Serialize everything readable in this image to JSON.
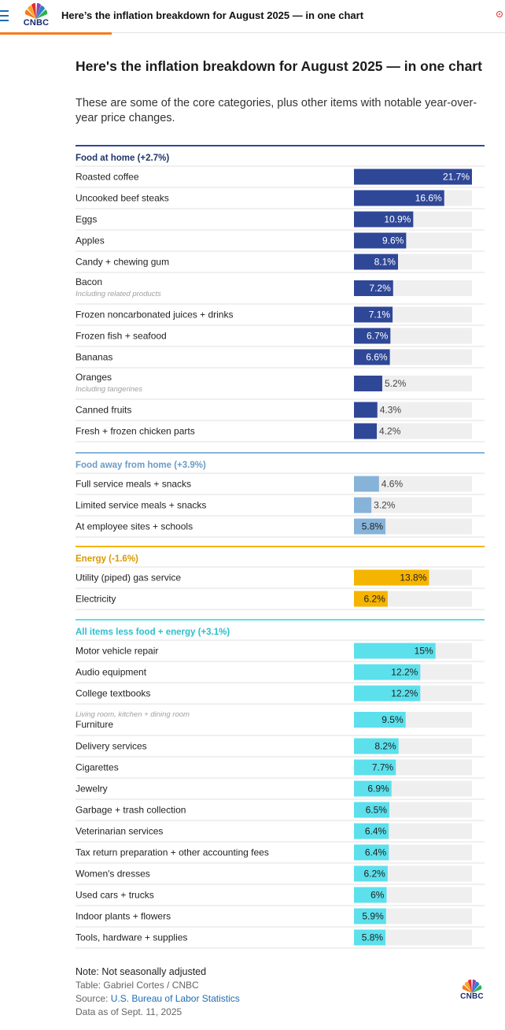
{
  "header": {
    "title": "Here’s the inflation breakdown for August 2025 — in one chart",
    "logo_text": "CNBC"
  },
  "colors": {
    "food_home": "#2f4797",
    "food_away": "#87b3d9",
    "energy": "#f5b400",
    "core": "#5ce0ec",
    "track": "#efefef",
    "divider": "#e1e1e1"
  },
  "chart_data": {
    "type": "bar",
    "title": "Here's the inflation breakdown for August 2025 — in one chart",
    "subtitle": "These are some of the core categories, plus other items with notable year-over-year price changes.",
    "xlim": [
      0,
      21.7
    ],
    "groups": [
      {
        "name": "Food at home (+2.7%)",
        "color": "#2f4797",
        "title_color": "#1f3668",
        "items": [
          {
            "label": "Roasted coffee",
            "value": 21.7,
            "display": "21.7%"
          },
          {
            "label": "Uncooked beef steaks",
            "value": 16.6,
            "display": "16.6%"
          },
          {
            "label": "Eggs",
            "value": 10.9,
            "display": "10.9%"
          },
          {
            "label": "Apples",
            "value": 9.6,
            "display": "9.6%"
          },
          {
            "label": "Candy + chewing gum",
            "value": 8.1,
            "display": "8.1%"
          },
          {
            "label": "Bacon",
            "note": "Including related products",
            "value": 7.2,
            "display": "7.2%"
          },
          {
            "label": "Frozen noncarbonated juices + drinks",
            "value": 7.1,
            "display": "7.1%"
          },
          {
            "label": "Frozen fish + seafood",
            "value": 6.7,
            "display": "6.7%"
          },
          {
            "label": "Bananas",
            "value": 6.6,
            "display": "6.6%"
          },
          {
            "label": "Oranges",
            "note": "Including tangerines",
            "value": 5.2,
            "display": "5.2%"
          },
          {
            "label": "Canned fruits",
            "value": 4.3,
            "display": "4.3%"
          },
          {
            "label": "Fresh + frozen chicken parts",
            "value": 4.2,
            "display": "4.2%"
          }
        ]
      },
      {
        "name": "Food away from home (+3.9%)",
        "color": "#87b3d9",
        "title_color": "#6b9bc6",
        "items": [
          {
            "label": "Full service meals + snacks",
            "value": 4.6,
            "display": "4.6%"
          },
          {
            "label": "Limited service meals + snacks",
            "value": 3.2,
            "display": "3.2%"
          },
          {
            "label": "At employee sites + schools",
            "value": 5.8,
            "display": "5.8%"
          }
        ]
      },
      {
        "name": "Energy (-1.6%)",
        "color": "#f5b400",
        "title_color": "#d99a00",
        "items": [
          {
            "label": "Utility (piped) gas service",
            "value": 13.8,
            "display": "13.8%"
          },
          {
            "label": "Electricity",
            "value": 6.2,
            "display": "6.2%"
          }
        ]
      },
      {
        "name": "All items less food + energy (+3.1%)",
        "color": "#5ce0ec",
        "title_color": "#2bbfcd",
        "items": [
          {
            "label": "Motor vehicle repair",
            "value": 15,
            "display": "15%"
          },
          {
            "label": "Audio equipment",
            "value": 12.2,
            "display": "12.2%"
          },
          {
            "label": "College textbooks",
            "value": 12.2,
            "display": "12.2%"
          },
          {
            "label": "Furniture",
            "note": "Living room, kitchen + dining room",
            "note_above": true,
            "value": 9.5,
            "display": "9.5%"
          },
          {
            "label": "Delivery services",
            "value": 8.2,
            "display": "8.2%"
          },
          {
            "label": "Cigarettes",
            "value": 7.7,
            "display": "7.7%"
          },
          {
            "label": "Jewelry",
            "value": 6.9,
            "display": "6.9%"
          },
          {
            "label": "Garbage + trash collection",
            "value": 6.5,
            "display": "6.5%"
          },
          {
            "label": "Veterinarian services",
            "value": 6.4,
            "display": "6.4%"
          },
          {
            "label": "Tax return preparation + other accounting fees",
            "value": 6.4,
            "display": "6.4%"
          },
          {
            "label": "Women's dresses",
            "value": 6.2,
            "display": "6.2%"
          },
          {
            "label": "Used cars + trucks",
            "value": 6,
            "display": "6%"
          },
          {
            "label": "Indoor plants + flowers",
            "value": 5.9,
            "display": "5.9%"
          },
          {
            "label": "Tools, hardware + supplies",
            "value": 5.8,
            "display": "5.8%"
          }
        ]
      }
    ]
  },
  "footer": {
    "note": "Note: Not seasonally adjusted",
    "table_credit": "Table: Gabriel Cortes / CNBC",
    "source_prefix": "Source: ",
    "source_link": "U.S. Bureau of Labor Statistics",
    "date": "Data as of Sept. 11, 2025",
    "logo_text": "CNBC"
  }
}
